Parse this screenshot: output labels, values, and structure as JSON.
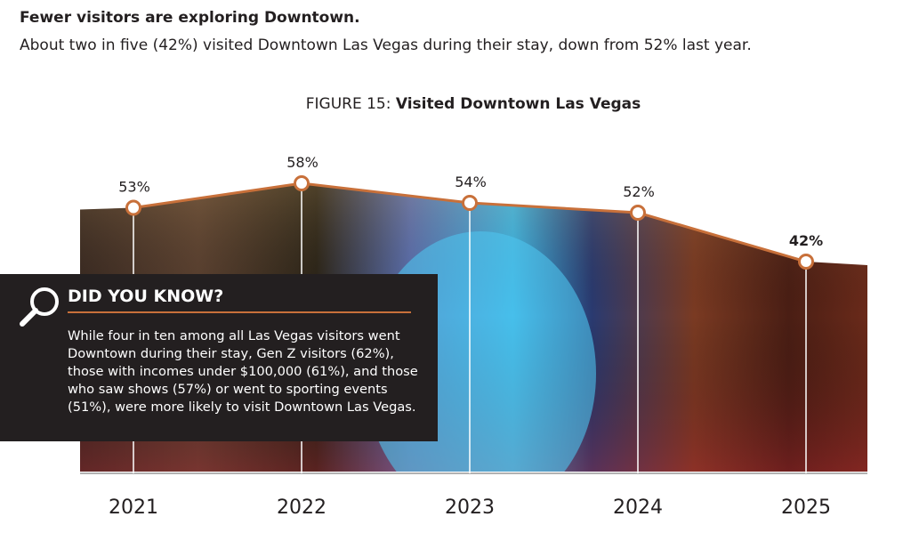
{
  "heading": "Fewer visitors are exploring Downtown.",
  "subheading": "About two in five (42%) visited Downtown Las Vegas during their stay, down from 52% last year.",
  "figure_prefix": "FIGURE 15: ",
  "figure_title": "Visited Downtown Las Vegas",
  "callout": {
    "icon": "magnifier-icon",
    "title": "DID YOU KNOW?",
    "text": "While four in ten among all Las Vegas visitors went Downtown during their stay, Gen Z visitors (62%), those with incomes under $100,000 (61%), and those who saw shows (57%) or went to sporting events (51%), were more likely to visit Downtown Las Vegas."
  },
  "colors": {
    "line": "#c8703a",
    "callout_bg": "#231f20"
  },
  "chart_data": {
    "type": "line",
    "title": "Visited Downtown Las Vegas",
    "categories": [
      "2021",
      "2022",
      "2023",
      "2024",
      "2025"
    ],
    "values": [
      53,
      58,
      54,
      52,
      42
    ],
    "labels": [
      "53%",
      "58%",
      "54%",
      "52%",
      "42%"
    ],
    "highlight_last": true,
    "background": "photo of Downtown Las Vegas beneath the line"
  }
}
